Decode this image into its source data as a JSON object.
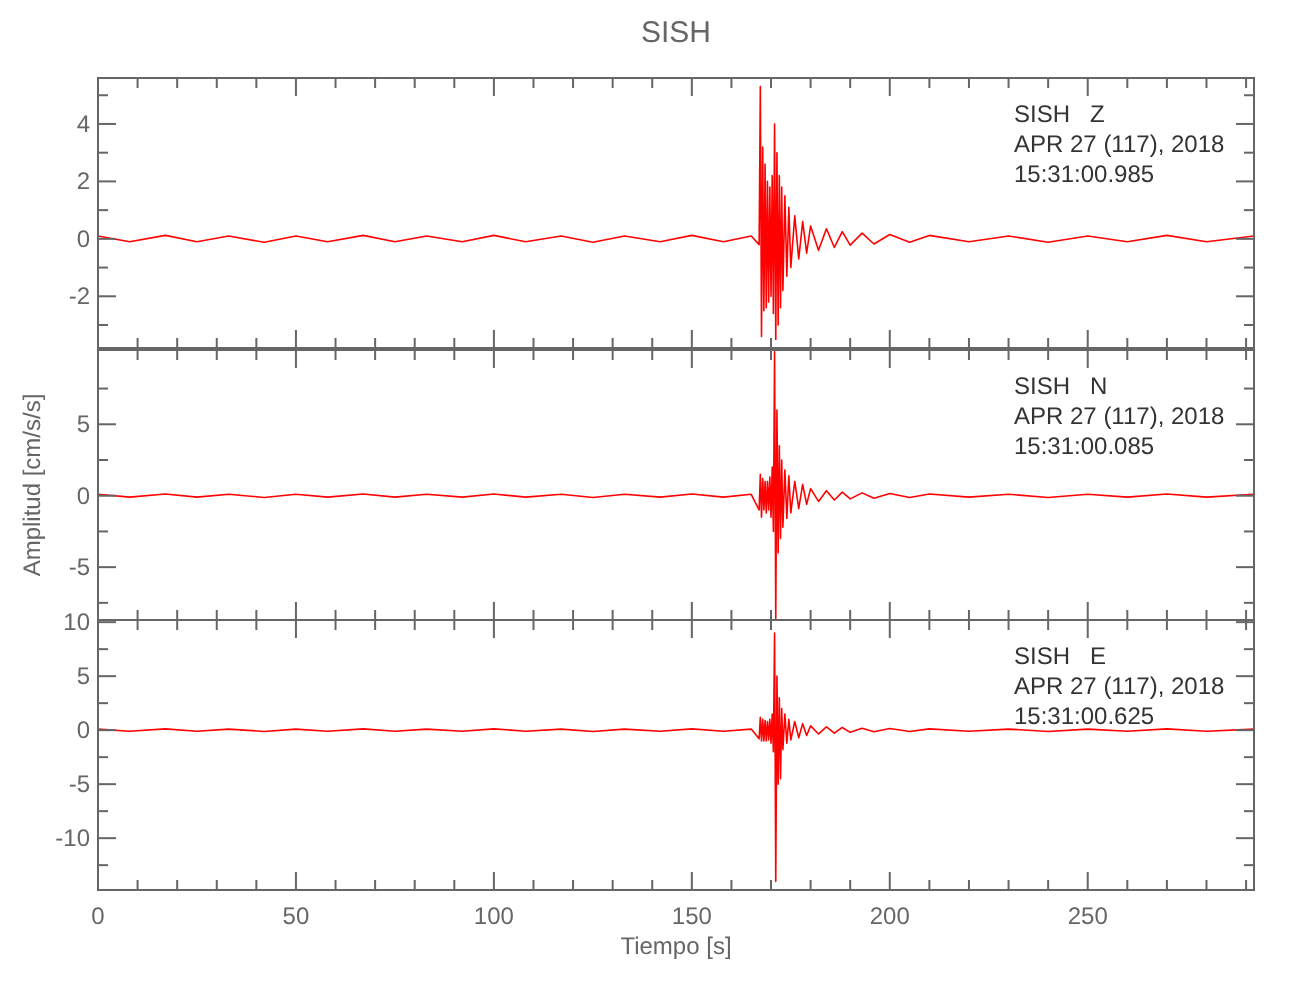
{
  "chart_data": [
    {
      "type": "line",
      "title": "SISH",
      "tick_labels": "y",
      "x": [
        0,
        8,
        17,
        25,
        33,
        42,
        50,
        58,
        67,
        75,
        83,
        92,
        100,
        108,
        117,
        125,
        133,
        142,
        150,
        158,
        165,
        167,
        167.3,
        167.6,
        167.9,
        168.2,
        168.5,
        168.8,
        169.1,
        169.4,
        169.7,
        170,
        170.3,
        170.6,
        170.9,
        171.2,
        171.5,
        171.8,
        172.1,
        172.4,
        172.7,
        173,
        173.5,
        174,
        174.5,
        175,
        176,
        177,
        178,
        179,
        180,
        182,
        184,
        186,
        188,
        190,
        193,
        196,
        200,
        205,
        210,
        220,
        230,
        240,
        250,
        260,
        270,
        280,
        292
      ],
      "series": [
        {
          "color": "#ff0000",
          "values": [
            0.1,
            -0.1,
            0.12,
            -0.1,
            0.1,
            -0.12,
            0.1,
            -0.1,
            0.12,
            -0.1,
            0.1,
            -0.1,
            0.12,
            -0.1,
            0.1,
            -0.12,
            0.1,
            -0.1,
            0.12,
            -0.1,
            0.1,
            -0.2,
            5.3,
            -3.4,
            3.2,
            -2.5,
            2.6,
            -2.4,
            2.0,
            -2.2,
            1.8,
            -2.0,
            2.2,
            -2.6,
            4.0,
            -3.5,
            3.0,
            -3.0,
            2.2,
            -2.4,
            1.8,
            -1.8,
            1.5,
            -1.3,
            1.1,
            -1.0,
            0.8,
            -0.7,
            0.6,
            -0.5,
            0.45,
            -0.4,
            0.35,
            -0.3,
            0.25,
            -0.22,
            0.2,
            -0.18,
            0.15,
            -0.12,
            0.12,
            -0.1,
            0.1,
            -0.12,
            0.1,
            -0.1,
            0.12,
            -0.1,
            0.1
          ]
        }
      ],
      "xlim": [
        0,
        292
      ],
      "xticks": [
        0,
        {
          "value": 10,
          "label": null
        },
        {
          "value": 20,
          "label": null
        },
        {
          "value": 30,
          "label": null
        },
        {
          "value": 40,
          "label": null
        },
        50,
        {
          "value": 60,
          "label": null
        },
        {
          "value": 70,
          "label": null
        },
        {
          "value": 80,
          "label": null
        },
        {
          "value": 90,
          "label": null
        },
        100,
        {
          "value": 110,
          "label": null
        },
        {
          "value": 120,
          "label": null
        },
        {
          "value": 130,
          "label": null
        },
        {
          "value": 140,
          "label": null
        },
        150,
        {
          "value": 160,
          "label": null
        },
        {
          "value": 170,
          "label": null
        },
        {
          "value": 180,
          "label": null
        },
        {
          "value": 190,
          "label": null
        },
        200,
        {
          "value": 210,
          "label": null
        },
        {
          "value": 220,
          "label": null
        },
        {
          "value": 230,
          "label": null
        },
        {
          "value": 240,
          "label": null
        },
        250,
        {
          "value": 260,
          "label": null
        },
        {
          "value": 270,
          "label": null
        },
        {
          "value": 280,
          "label": null
        },
        {
          "value": 290,
          "label": null
        }
      ],
      "ylim": [
        -3.8,
        5.6
      ],
      "yticks": [
        {
          "value": -3,
          "label": null
        },
        -2,
        {
          "value": -1,
          "label": null
        },
        0,
        {
          "value": 1,
          "label": null
        },
        2,
        {
          "value": 3,
          "label": null
        },
        4,
        {
          "value": 5,
          "label": null
        }
      ],
      "annotations": [
        "SISH   Z",
        "APR 27 (117), 2018",
        "15:31:00.985"
      ]
    },
    {
      "type": "line",
      "ylabel": "Amplitud [cm/s/s]",
      "tick_labels": "y",
      "x": [
        0,
        8,
        17,
        25,
        33,
        42,
        50,
        58,
        67,
        75,
        83,
        92,
        100,
        108,
        117,
        125,
        133,
        142,
        150,
        158,
        165,
        167,
        167.3,
        167.6,
        167.9,
        168.2,
        168.5,
        168.8,
        169.1,
        169.4,
        169.7,
        170,
        170.3,
        170.6,
        170.9,
        171.2,
        171.5,
        171.8,
        172.1,
        172.4,
        172.7,
        173,
        173.5,
        174,
        174.5,
        175,
        176,
        177,
        178,
        179,
        180,
        182,
        184,
        186,
        188,
        190,
        193,
        196,
        200,
        205,
        210,
        220,
        230,
        240,
        250,
        260,
        270,
        280,
        292
      ],
      "series": [
        {
          "color": "#ff0000",
          "values": [
            0.1,
            -0.1,
            0.12,
            -0.1,
            0.1,
            -0.12,
            0.1,
            -0.1,
            0.12,
            -0.1,
            0.1,
            -0.1,
            0.12,
            -0.1,
            0.1,
            -0.12,
            0.1,
            -0.1,
            0.12,
            -0.1,
            0.1,
            -1.0,
            1.5,
            -1.5,
            1.2,
            -1.0,
            1.0,
            -1.2,
            1.0,
            -1.0,
            1.3,
            -1.5,
            2.0,
            -2.5,
            10.1,
            -8.6,
            6.0,
            -4.0,
            3.5,
            -3.0,
            2.5,
            -2.2,
            1.8,
            -1.6,
            1.4,
            -1.2,
            1.0,
            -0.9,
            0.8,
            -0.6,
            0.5,
            -0.4,
            0.35,
            -0.3,
            0.25,
            -0.22,
            0.2,
            -0.18,
            0.15,
            -0.12,
            0.12,
            -0.1,
            0.1,
            -0.12,
            0.1,
            -0.1,
            0.12,
            -0.1,
            0.1
          ]
        }
      ],
      "xlim": [
        0,
        292
      ],
      "xticks": [
        0,
        {
          "value": 10,
          "label": null
        },
        {
          "value": 20,
          "label": null
        },
        {
          "value": 30,
          "label": null
        },
        {
          "value": 40,
          "label": null
        },
        50,
        {
          "value": 60,
          "label": null
        },
        {
          "value": 70,
          "label": null
        },
        {
          "value": 80,
          "label": null
        },
        {
          "value": 90,
          "label": null
        },
        100,
        {
          "value": 110,
          "label": null
        },
        {
          "value": 120,
          "label": null
        },
        {
          "value": 130,
          "label": null
        },
        {
          "value": 140,
          "label": null
        },
        150,
        {
          "value": 160,
          "label": null
        },
        {
          "value": 170,
          "label": null
        },
        {
          "value": 180,
          "label": null
        },
        {
          "value": 190,
          "label": null
        },
        200,
        {
          "value": 210,
          "label": null
        },
        {
          "value": 220,
          "label": null
        },
        {
          "value": 230,
          "label": null
        },
        {
          "value": 240,
          "label": null
        },
        250,
        {
          "value": 260,
          "label": null
        },
        {
          "value": 270,
          "label": null
        },
        {
          "value": 280,
          "label": null
        },
        {
          "value": 290,
          "label": null
        }
      ],
      "ylim": [
        -8.7,
        10.2
      ],
      "yticks": [
        {
          "value": -7.5,
          "label": null
        },
        -5,
        {
          "value": -2.5,
          "label": null
        },
        0,
        {
          "value": 2.5,
          "label": null
        },
        5,
        {
          "value": 7.5,
          "label": null
        }
      ],
      "annotations": [
        "SISH   N",
        "APR 27 (117), 2018",
        "15:31:00.085"
      ]
    },
    {
      "type": "line",
      "xlabel": "Tiempo [s]",
      "x": [
        0,
        8,
        17,
        25,
        33,
        42,
        50,
        58,
        67,
        75,
        83,
        92,
        100,
        108,
        117,
        125,
        133,
        142,
        150,
        158,
        165,
        167,
        167.3,
        167.6,
        167.9,
        168.2,
        168.5,
        168.8,
        169.1,
        169.4,
        169.7,
        170,
        170.3,
        170.6,
        170.9,
        171.2,
        171.5,
        171.8,
        172.1,
        172.4,
        172.7,
        173,
        173.5,
        174,
        174.5,
        175,
        176,
        177,
        178,
        179,
        180,
        182,
        184,
        186,
        188,
        190,
        193,
        196,
        200,
        205,
        210,
        220,
        230,
        240,
        250,
        260,
        270,
        280,
        292
      ],
      "series": [
        {
          "color": "#ff0000",
          "values": [
            0.1,
            -0.1,
            0.12,
            -0.1,
            0.1,
            -0.12,
            0.1,
            -0.1,
            0.12,
            -0.1,
            0.1,
            -0.1,
            0.12,
            -0.1,
            0.1,
            -0.12,
            0.1,
            -0.1,
            0.12,
            -0.1,
            0.1,
            -0.8,
            1.2,
            -1.0,
            1.0,
            -1.0,
            0.9,
            -1.0,
            0.8,
            -0.9,
            1.0,
            -1.2,
            1.5,
            -2.0,
            9.0,
            -14.0,
            5.0,
            -5.0,
            3.0,
            -4.5,
            2.0,
            -1.8,
            1.5,
            -1.2,
            1.0,
            -0.9,
            0.8,
            -0.7,
            0.6,
            -0.5,
            0.4,
            -0.35,
            0.3,
            -0.28,
            0.25,
            -0.2,
            0.18,
            -0.15,
            0.15,
            -0.12,
            0.12,
            -0.1,
            0.1,
            -0.12,
            0.1,
            -0.1,
            0.12,
            -0.1,
            0.1
          ]
        }
      ],
      "xlim": [
        0,
        292
      ],
      "xticks": [
        0,
        {
          "value": 10,
          "label": null
        },
        {
          "value": 20,
          "label": null
        },
        {
          "value": 30,
          "label": null
        },
        {
          "value": 40,
          "label": null
        },
        50,
        {
          "value": 60,
          "label": null
        },
        {
          "value": 70,
          "label": null
        },
        {
          "value": 80,
          "label": null
        },
        {
          "value": 90,
          "label": null
        },
        100,
        {
          "value": 110,
          "label": null
        },
        {
          "value": 120,
          "label": null
        },
        {
          "value": 130,
          "label": null
        },
        {
          "value": 140,
          "label": null
        },
        150,
        {
          "value": 160,
          "label": null
        },
        {
          "value": 170,
          "label": null
        },
        {
          "value": 180,
          "label": null
        },
        {
          "value": 190,
          "label": null
        },
        200,
        {
          "value": 210,
          "label": null
        },
        {
          "value": 220,
          "label": null
        },
        {
          "value": 230,
          "label": null
        },
        {
          "value": 240,
          "label": null
        },
        250,
        {
          "value": 260,
          "label": null
        },
        {
          "value": 270,
          "label": null
        },
        {
          "value": 280,
          "label": null
        },
        {
          "value": 290,
          "label": null
        }
      ],
      "ylim": [
        -14.8,
        10.2
      ],
      "yticks": [
        {
          "value": -12.5,
          "label": null
        },
        -10,
        {
          "value": -7.5,
          "label": null
        },
        -5,
        {
          "value": -2.5,
          "label": null
        },
        0,
        {
          "value": 2.5,
          "label": null
        },
        5,
        {
          "value": 7.5,
          "label": null
        },
        10
      ],
      "annotations": [
        "SISH   E",
        "APR 27 (117), 2018",
        "15:31:00.625"
      ]
    }
  ]
}
